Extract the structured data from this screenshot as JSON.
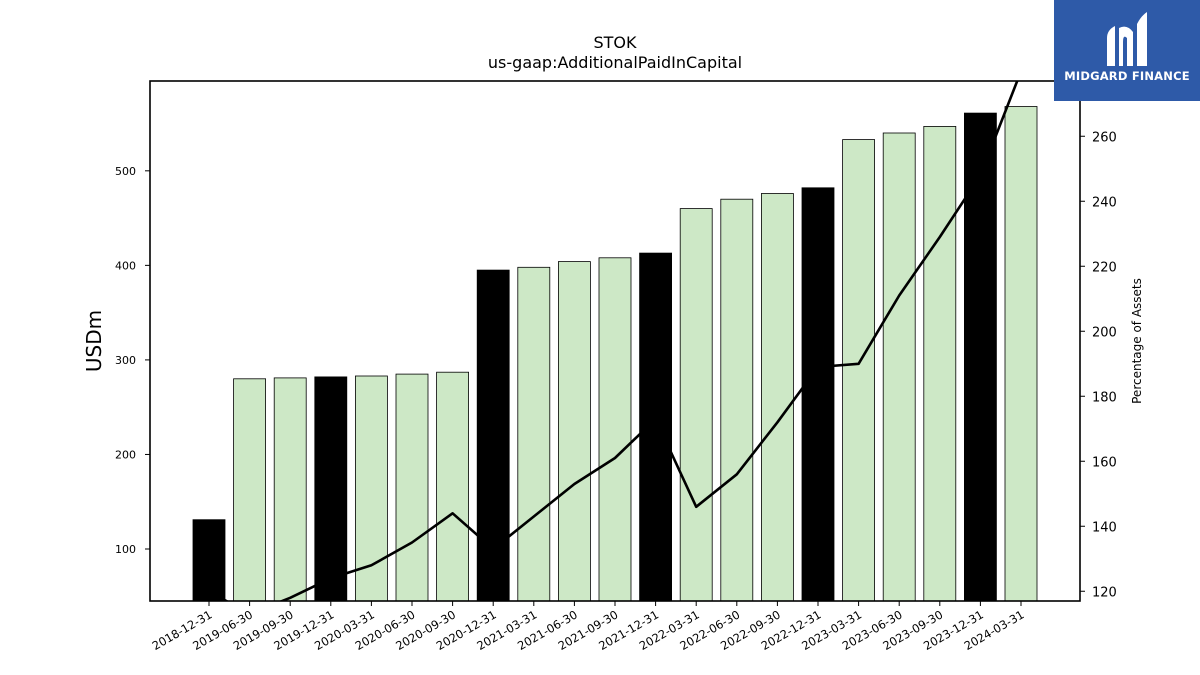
{
  "logo": {
    "text": "MIDGARD FINANCE"
  },
  "chart_data": {
    "type": "bar",
    "title": "STOK",
    "subtitle": "us-gaap:AdditionalPaidInCapital",
    "ylabel": "USDm",
    "y2label": "Percentage of Assets",
    "ylim": [
      45,
      595
    ],
    "y2lim": [
      117,
      277
    ],
    "yticks": [
      100,
      200,
      300,
      400,
      500
    ],
    "y2ticks": [
      120,
      140,
      160,
      180,
      200,
      220,
      240,
      260
    ],
    "categories": [
      "2018-12-31",
      "2019-06-30",
      "2019-09-30",
      "2019-12-31",
      "2020-03-31",
      "2020-06-30",
      "2020-09-30",
      "2020-12-31",
      "2021-03-31",
      "2021-06-30",
      "2021-09-30",
      "2021-12-31",
      "2022-03-31",
      "2022-06-30",
      "2022-09-30",
      "2022-12-31",
      "2023-03-31",
      "2023-06-30",
      "2023-09-30",
      "2023-12-31",
      "2024-03-31"
    ],
    "series": [
      {
        "type": "bar",
        "axis": "left",
        "values": [
          131,
          280,
          281,
          282,
          283,
          285,
          287,
          395,
          398,
          404,
          408,
          413,
          460,
          470,
          476,
          482,
          533,
          540,
          547,
          561,
          568
        ],
        "annual": [
          true,
          false,
          false,
          true,
          false,
          false,
          false,
          true,
          false,
          false,
          false,
          true,
          false,
          false,
          false,
          true,
          false,
          false,
          false,
          true,
          false
        ],
        "colors": {
          "annual": "#000000",
          "quarterly": "#cde8c6"
        }
      },
      {
        "type": "line",
        "axis": "right",
        "color": "#000000",
        "values": [
          120,
          113,
          118,
          124,
          128,
          135,
          144,
          133,
          143,
          153,
          161,
          173,
          146,
          156,
          172,
          189,
          190,
          211,
          229,
          248,
          280
        ]
      }
    ],
    "grid": false
  }
}
